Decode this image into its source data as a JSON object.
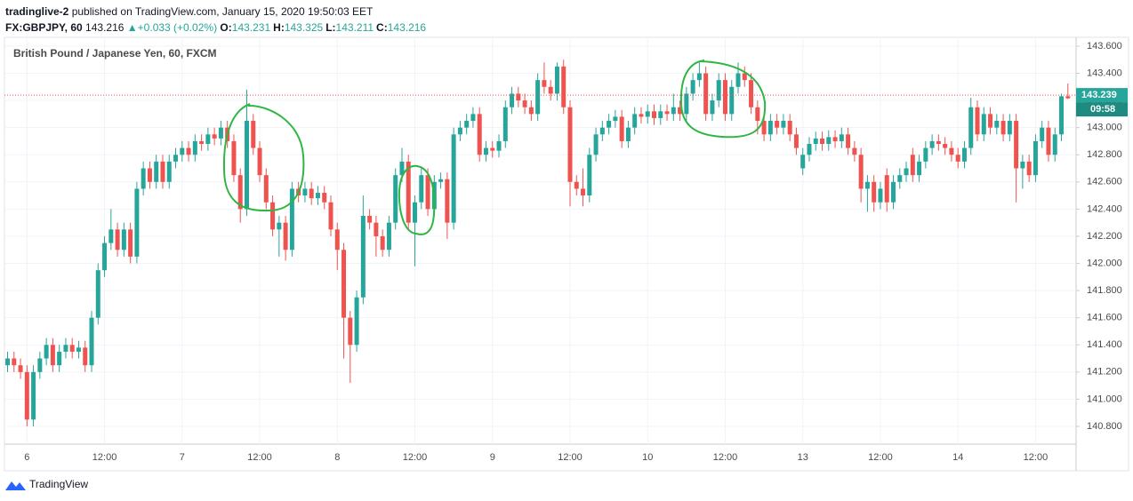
{
  "header": {
    "author": "tradinglive-2",
    "published": "published on TradingView.com, January 15, 2020 19:50:03 EET",
    "symbol": "FX:GBPJPY, 60",
    "price": "143.216",
    "change": "+0.033 (+0.02%)",
    "ohlc": [
      {
        "label": "O:",
        "value": "143.231"
      },
      {
        "label": "H:",
        "value": "143.325"
      },
      {
        "label": "L:",
        "value": "143.211"
      },
      {
        "label": "C:",
        "value": "143.216"
      }
    ]
  },
  "footer": {
    "brand": "TradingView"
  },
  "chart_data": {
    "type": "candlestick",
    "title": "British Pound / Japanese Yen, 60, FXCM",
    "up_color": "#26a69a",
    "down_color": "#ef5350",
    "grid": true,
    "last_price": 143.239,
    "countdown": "09:58",
    "ylim": [
      140.669,
      143.665
    ],
    "yticks": [
      {
        "value": 140.8,
        "label": "140.800"
      },
      {
        "value": 141.0,
        "label": "141.000"
      },
      {
        "value": 141.2,
        "label": "141.200"
      },
      {
        "value": 141.4,
        "label": "141.400"
      },
      {
        "value": 141.6,
        "label": "141.600"
      },
      {
        "value": 141.8,
        "label": "141.800"
      },
      {
        "value": 142.0,
        "label": "142.000"
      },
      {
        "value": 142.2,
        "label": "142.200"
      },
      {
        "value": 142.4,
        "label": "142.400"
      },
      {
        "value": 142.6,
        "label": "142.600"
      },
      {
        "value": 142.8,
        "label": "142.800"
      },
      {
        "value": 143.0,
        "label": "143.000"
      },
      {
        "value": 143.2,
        "label": "143.200"
      },
      {
        "value": 143.4,
        "label": "143.400"
      },
      {
        "value": 143.6,
        "label": "143.600"
      }
    ],
    "categories": [
      null,
      null,
      null,
      "6",
      null,
      null,
      null,
      null,
      null,
      null,
      null,
      null,
      null,
      null,
      null,
      "12:00",
      null,
      null,
      null,
      null,
      null,
      null,
      null,
      null,
      null,
      null,
      null,
      "7",
      null,
      null,
      null,
      null,
      null,
      null,
      null,
      null,
      null,
      null,
      null,
      "12:00",
      null,
      null,
      null,
      null,
      null,
      null,
      null,
      null,
      null,
      null,
      null,
      "8",
      null,
      null,
      null,
      null,
      null,
      null,
      null,
      null,
      null,
      null,
      null,
      "12:00",
      null,
      null,
      null,
      null,
      null,
      null,
      null,
      null,
      null,
      null,
      null,
      "9",
      null,
      null,
      null,
      null,
      null,
      null,
      null,
      null,
      null,
      null,
      null,
      "12:00",
      null,
      null,
      null,
      null,
      null,
      null,
      null,
      null,
      null,
      null,
      null,
      "10",
      null,
      null,
      null,
      null,
      null,
      null,
      null,
      null,
      null,
      null,
      null,
      "12:00",
      null,
      null,
      null,
      null,
      null,
      null,
      null,
      null,
      null,
      null,
      null,
      "13",
      null,
      null,
      null,
      null,
      null,
      null,
      null,
      null,
      null,
      null,
      null,
      "12:00",
      null,
      null,
      null,
      null,
      null,
      null,
      null,
      null,
      null,
      null,
      null,
      "14",
      null,
      null,
      null,
      null,
      null,
      null,
      null,
      null,
      null,
      null,
      null,
      "12:00",
      null,
      null,
      null,
      null,
      null
    ],
    "open": [
      141.25,
      141.3,
      141.25,
      141.2,
      140.85,
      141.2,
      141.3,
      141.4,
      141.25,
      141.35,
      141.4,
      141.35,
      141.38,
      141.25,
      141.6,
      141.95,
      142.15,
      142.25,
      142.1,
      142.25,
      142.05,
      142.55,
      142.7,
      142.6,
      142.75,
      142.6,
      142.75,
      142.8,
      142.85,
      142.8,
      142.9,
      142.88,
      142.95,
      142.92,
      143.0,
      142.9,
      142.65,
      142.4,
      143.05,
      142.85,
      142.65,
      142.45,
      142.25,
      142.3,
      142.1,
      142.55,
      142.5,
      142.55,
      142.48,
      142.52,
      142.45,
      142.25,
      142.1,
      141.6,
      141.4,
      141.75,
      142.35,
      142.3,
      142.2,
      142.1,
      142.3,
      142.65,
      142.75,
      142.3,
      142.45,
      142.65,
      142.4,
      142.6,
      142.62,
      142.3,
      142.95,
      143.0,
      143.05,
      143.1,
      142.8,
      142.85,
      142.83,
      142.9,
      143.15,
      143.25,
      143.2,
      143.15,
      143.1,
      143.35,
      143.3,
      143.25,
      143.45,
      143.15,
      142.6,
      142.55,
      142.5,
      142.8,
      142.95,
      143.0,
      143.05,
      143.08,
      142.9,
      143.0,
      143.1,
      143.08,
      143.12,
      143.07,
      143.12,
      143.1,
      143.15,
      143.1,
      143.25,
      143.35,
      143.4,
      143.1,
      143.2,
      143.35,
      143.1,
      143.3,
      143.4,
      143.35,
      143.15,
      143.05,
      142.95,
      143.05,
      143.0,
      143.05,
      142.95,
      142.7,
      142.8,
      142.88,
      142.92,
      142.88,
      142.93,
      142.9,
      142.95,
      142.85,
      142.8,
      142.55,
      142.6,
      142.45,
      142.65,
      142.45,
      142.6,
      142.65,
      142.8,
      142.65,
      142.75,
      142.85,
      142.9,
      142.88,
      142.85,
      142.8,
      142.75,
      142.85,
      143.15,
      142.95,
      143.1,
      143.0,
      143.05,
      142.95,
      143.05,
      142.7,
      142.75,
      142.65,
      142.9,
      143.0,
      142.8,
      142.95,
      143.231
    ],
    "high": [
      141.35,
      141.35,
      141.3,
      141.25,
      141.25,
      141.35,
      141.45,
      141.45,
      141.4,
      141.45,
      141.45,
      141.43,
      141.43,
      141.65,
      142.0,
      142.2,
      142.4,
      142.3,
      142.3,
      142.3,
      142.6,
      142.75,
      142.75,
      142.8,
      142.8,
      142.8,
      142.85,
      142.9,
      142.9,
      142.95,
      142.95,
      143.0,
      143.0,
      143.05,
      143.05,
      142.95,
      142.7,
      143.28,
      143.1,
      142.9,
      142.7,
      142.5,
      142.35,
      142.35,
      142.6,
      142.6,
      142.6,
      142.6,
      142.57,
      142.57,
      142.5,
      142.3,
      142.15,
      141.65,
      141.8,
      142.5,
      142.4,
      142.35,
      142.25,
      142.35,
      142.7,
      142.85,
      142.8,
      142.5,
      142.7,
      142.7,
      142.65,
      142.67,
      142.67,
      143.0,
      143.05,
      143.1,
      143.15,
      143.15,
      142.9,
      142.9,
      142.95,
      143.2,
      143.3,
      143.3,
      143.25,
      143.2,
      143.4,
      143.48,
      143.35,
      143.48,
      143.5,
      143.2,
      142.65,
      142.7,
      142.85,
      143.0,
      143.05,
      143.1,
      143.13,
      143.13,
      143.05,
      143.15,
      143.15,
      143.17,
      143.17,
      143.17,
      143.17,
      143.25,
      143.2,
      143.3,
      143.4,
      143.48,
      143.45,
      143.25,
      143.4,
      143.4,
      143.35,
      143.48,
      143.45,
      143.4,
      143.2,
      143.1,
      143.1,
      143.1,
      143.1,
      143.1,
      143.0,
      142.85,
      142.93,
      142.97,
      142.97,
      142.98,
      142.98,
      143.0,
      143.0,
      142.9,
      142.85,
      142.65,
      142.65,
      142.6,
      142.7,
      142.65,
      142.7,
      142.75,
      142.85,
      142.8,
      142.9,
      142.95,
      142.95,
      142.93,
      142.9,
      142.85,
      142.9,
      143.22,
      143.2,
      143.15,
      143.15,
      143.1,
      143.1,
      143.1,
      143.1,
      142.8,
      142.8,
      142.95,
      143.05,
      143.05,
      143.0,
      143.25,
      143.325
    ],
    "low": [
      141.2,
      141.2,
      141.15,
      140.8,
      140.8,
      141.15,
      141.25,
      141.2,
      141.2,
      141.3,
      141.3,
      141.3,
      141.2,
      141.2,
      141.55,
      141.9,
      142.1,
      142.05,
      142.05,
      142.0,
      142.0,
      142.5,
      142.55,
      142.55,
      142.55,
      142.55,
      142.7,
      142.75,
      142.75,
      142.75,
      142.83,
      142.83,
      142.87,
      142.87,
      142.85,
      142.6,
      142.3,
      142.35,
      142.8,
      142.6,
      142.4,
      142.2,
      142.05,
      142.02,
      142.05,
      142.45,
      142.45,
      142.43,
      142.43,
      142.4,
      142.2,
      141.95,
      141.3,
      141.12,
      141.35,
      141.7,
      142.25,
      142.05,
      142.05,
      142.05,
      142.25,
      142.6,
      142.25,
      141.98,
      142.4,
      142.35,
      142.35,
      142.55,
      142.18,
      142.25,
      142.9,
      142.95,
      143.0,
      142.75,
      142.75,
      142.78,
      142.78,
      142.85,
      143.1,
      143.15,
      143.1,
      143.05,
      143.05,
      143.25,
      143.2,
      143.2,
      143.1,
      142.42,
      142.5,
      142.42,
      142.45,
      142.75,
      142.9,
      142.95,
      143.0,
      142.85,
      142.85,
      142.95,
      143.03,
      143.03,
      143.02,
      143.02,
      143.05,
      143.05,
      143.05,
      143.05,
      143.2,
      143.3,
      143.05,
      143.05,
      143.15,
      143.05,
      143.05,
      143.25,
      143.3,
      143.1,
      142.95,
      142.9,
      142.9,
      142.95,
      142.95,
      142.9,
      142.8,
      142.65,
      142.75,
      142.83,
      142.83,
      142.83,
      142.85,
      142.85,
      142.8,
      142.75,
      142.45,
      142.38,
      142.38,
      142.4,
      142.38,
      142.4,
      142.55,
      142.6,
      142.6,
      142.6,
      142.7,
      142.8,
      142.83,
      142.8,
      142.75,
      142.7,
      142.7,
      142.8,
      142.9,
      142.9,
      142.95,
      142.95,
      142.9,
      142.9,
      142.45,
      142.55,
      142.6,
      142.6,
      142.85,
      142.75,
      142.75,
      142.9,
      143.211
    ],
    "close": [
      141.3,
      141.25,
      141.2,
      140.85,
      141.2,
      141.3,
      141.4,
      141.25,
      141.35,
      141.4,
      141.35,
      141.38,
      141.25,
      141.6,
      141.95,
      142.15,
      142.25,
      142.1,
      142.25,
      142.05,
      142.55,
      142.7,
      142.6,
      142.75,
      142.6,
      142.75,
      142.8,
      142.85,
      142.8,
      142.9,
      142.88,
      142.95,
      142.92,
      143.0,
      142.9,
      142.65,
      142.4,
      143.05,
      142.85,
      142.65,
      142.45,
      142.25,
      142.3,
      142.1,
      142.55,
      142.5,
      142.55,
      142.48,
      142.52,
      142.45,
      142.25,
      142.1,
      141.6,
      141.4,
      141.75,
      142.35,
      142.3,
      142.2,
      142.1,
      142.3,
      142.65,
      142.75,
      142.3,
      142.45,
      142.65,
      142.4,
      142.6,
      142.62,
      142.3,
      142.95,
      143.0,
      143.05,
      143.1,
      142.8,
      142.85,
      142.83,
      142.9,
      143.15,
      143.25,
      143.2,
      143.15,
      143.1,
      143.35,
      143.3,
      143.25,
      143.45,
      143.15,
      142.6,
      142.55,
      142.5,
      142.8,
      142.95,
      143.0,
      143.05,
      143.08,
      142.9,
      143.0,
      143.1,
      143.08,
      143.12,
      143.07,
      143.12,
      143.1,
      143.15,
      143.1,
      143.25,
      143.35,
      143.4,
      143.1,
      143.2,
      143.35,
      143.1,
      143.3,
      143.4,
      143.35,
      143.15,
      143.05,
      142.95,
      143.05,
      143.0,
      143.05,
      142.95,
      142.85,
      142.8,
      142.88,
      142.92,
      142.88,
      142.93,
      142.9,
      142.95,
      142.85,
      142.8,
      142.55,
      142.6,
      142.45,
      142.55,
      142.45,
      142.6,
      142.65,
      142.7,
      142.65,
      142.75,
      142.85,
      142.9,
      142.88,
      142.85,
      142.8,
      142.75,
      142.85,
      143.15,
      142.95,
      143.1,
      143.0,
      143.05,
      142.95,
      143.05,
      142.7,
      142.75,
      142.65,
      142.9,
      143.0,
      142.8,
      142.95,
      143.231,
      143.216
    ]
  }
}
